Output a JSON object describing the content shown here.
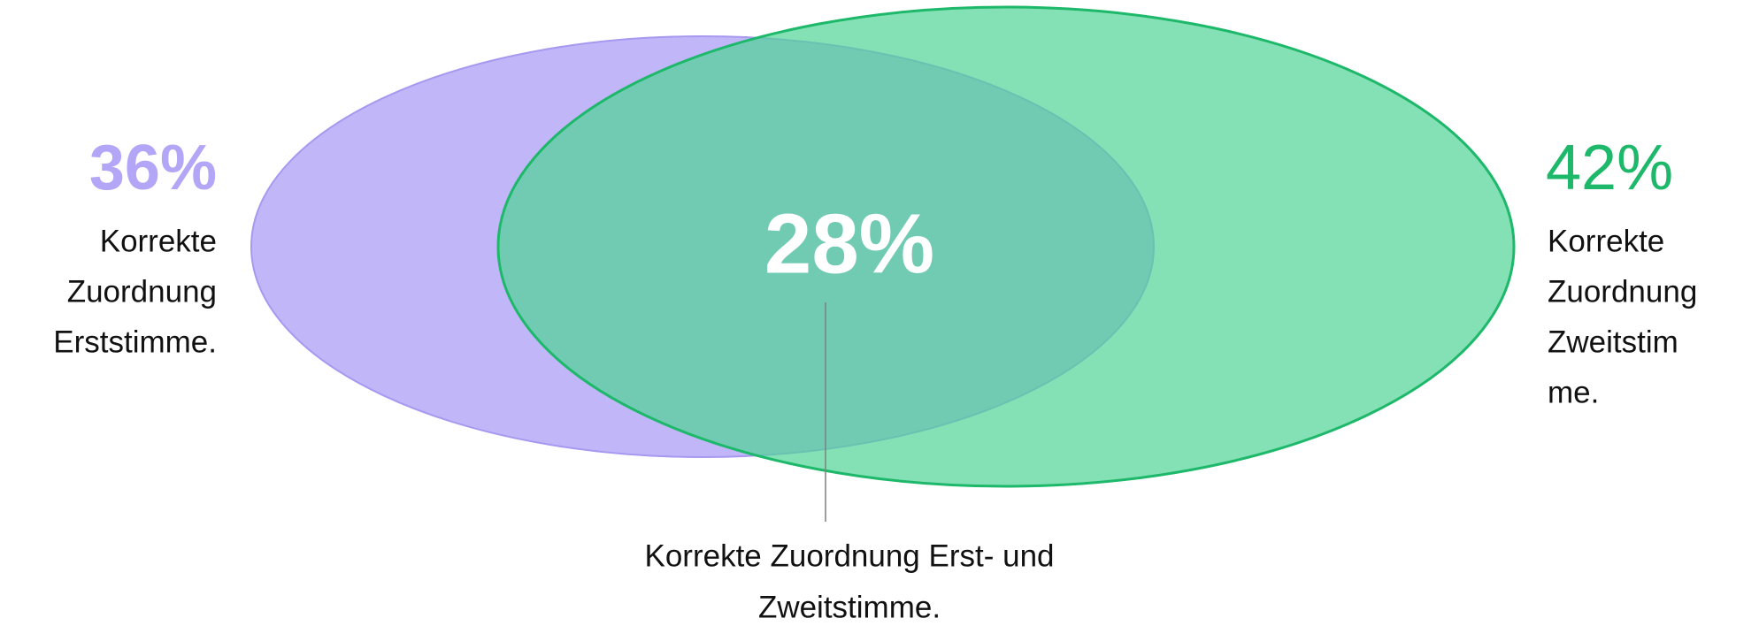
{
  "left_set": {
    "percent": "36%",
    "lines": [
      "Korrekte",
      "Zuordnung",
      "Erststimme."
    ]
  },
  "right_set": {
    "percent": "42%",
    "lines": [
      "Korrekte",
      "Zuordnung",
      "Zweitstim",
      "me."
    ]
  },
  "overlap": {
    "percent": "28%",
    "lines": [
      "Korrekte Zuordnung Erst- und",
      "Zweitstimme."
    ]
  }
}
